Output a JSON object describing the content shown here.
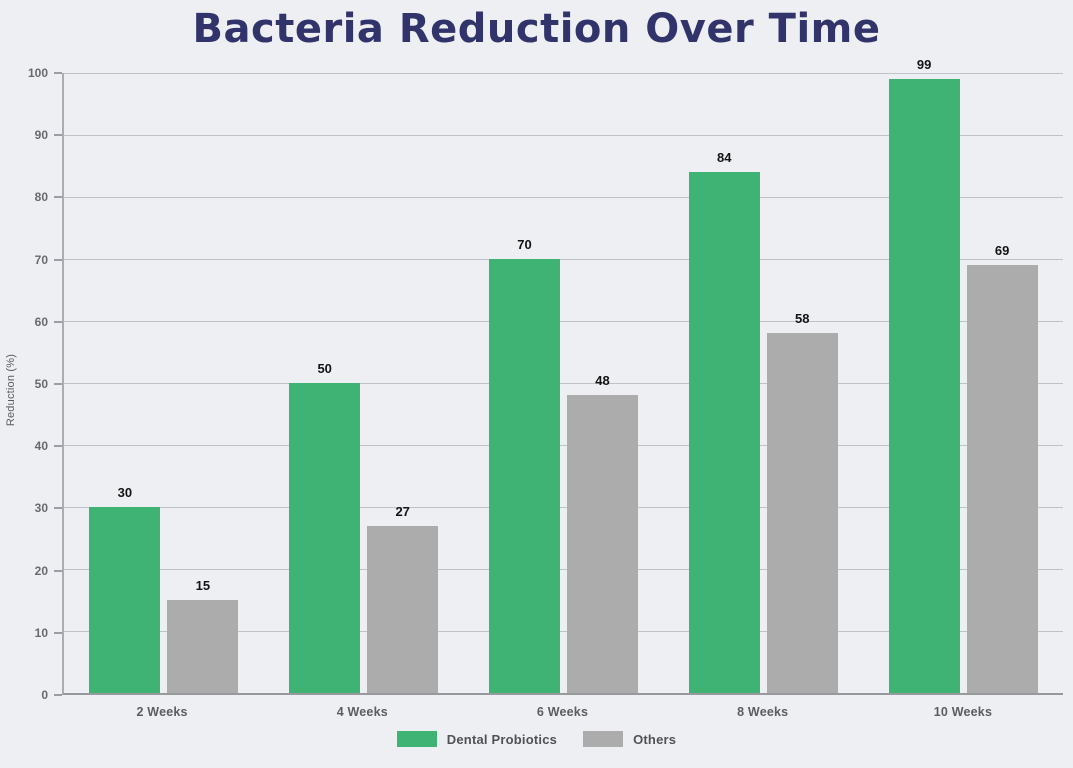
{
  "title": "Bacteria Reduction Over Time",
  "chart_data": {
    "type": "bar",
    "title": "Bacteria Reduction Over Time",
    "categories": [
      "2 Weeks",
      "4 Weeks",
      "6 Weeks",
      "8 Weeks",
      "10 Weeks"
    ],
    "series": [
      {
        "name": "Dental Probiotics",
        "color": "#3EB374",
        "values": [
          30,
          50,
          70,
          84,
          99
        ]
      },
      {
        "name": "Others",
        "color": "#ACACAC",
        "values": [
          15,
          27,
          48,
          58,
          69
        ]
      }
    ],
    "xlabel": "",
    "ylabel": "Reduction (%)",
    "ylim": [
      0,
      100
    ],
    "ytick_step": 10,
    "grid": "horizontal",
    "legend_position": "bottom-center",
    "bar_value_labels": true
  },
  "colors": {
    "background": "#EDEFF3",
    "title_text": "#31336B",
    "gridline": "#BFC2C8",
    "x_axis_line": "#97999C",
    "y_axis_line": "#A9ACB2",
    "tick_text": "#67696D",
    "bar_label_text": "#141414",
    "legend_text": "#505256"
  }
}
